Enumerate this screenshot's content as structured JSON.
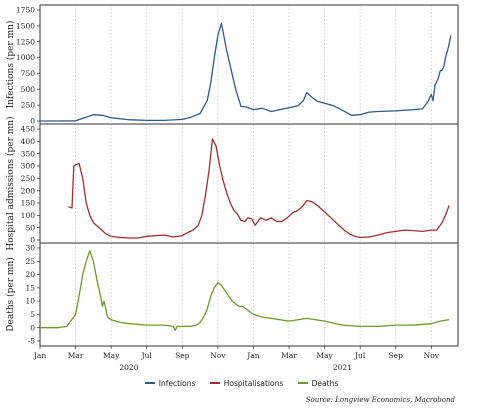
{
  "chart_data": [
    {
      "type": "line",
      "ylabel": "Infections (per mn)",
      "ylim": [
        0,
        1750
      ],
      "yticks": [
        0,
        250,
        500,
        750,
        1000,
        1250,
        1500,
        1750
      ],
      "series": [
        {
          "name": "Infections",
          "color": "#2e5a8c",
          "x": [
            0.0,
            1.0,
            2.0,
            2.5,
            3.0,
            3.5,
            4.0,
            5.0,
            6.0,
            7.0,
            8.0,
            8.5,
            9.0,
            9.4,
            9.6,
            9.8,
            10.0,
            10.2,
            10.5,
            11.0,
            11.3,
            11.6,
            12.0,
            12.5,
            13.0,
            14.0,
            14.5,
            14.8,
            15.0,
            15.3,
            15.6,
            16.0,
            16.5,
            17.0,
            17.5,
            18.0,
            18.5,
            19.0,
            20.0,
            21.0,
            21.5,
            21.8,
            22.0,
            22.1,
            22.2,
            22.4,
            22.5,
            22.6,
            22.7,
            22.8,
            22.95,
            23.1
          ],
          "values": [
            0,
            0,
            3,
            50,
            100,
            90,
            50,
            20,
            10,
            10,
            25,
            60,
            120,
            320,
            600,
            1000,
            1350,
            1540,
            1100,
            500,
            230,
            220,
            180,
            200,
            150,
            210,
            240,
            320,
            450,
            370,
            310,
            280,
            240,
            170,
            90,
            100,
            140,
            150,
            160,
            180,
            190,
            300,
            420,
            320,
            560,
            680,
            790,
            800,
            860,
            1000,
            1150,
            1350
          ]
        }
      ]
    },
    {
      "type": "line",
      "ylabel": "Hospital admissions (per mn)",
      "ylim": [
        0,
        450
      ],
      "yticks": [
        0,
        50,
        100,
        150,
        200,
        250,
        300,
        350,
        400,
        450
      ],
      "series": [
        {
          "name": "Hospitalisations",
          "color": "#a03030",
          "x": [
            1.6,
            1.8,
            1.9,
            2.0,
            2.2,
            2.4,
            2.6,
            2.8,
            3.0,
            3.4,
            3.7,
            4.0,
            4.5,
            5.0,
            5.5,
            6.0,
            6.5,
            7.0,
            7.5,
            8.0,
            8.3,
            8.6,
            8.9,
            9.1,
            9.3,
            9.5,
            9.7,
            9.9,
            10.1,
            10.3,
            10.5,
            10.7,
            10.9,
            11.1,
            11.3,
            11.5,
            11.7,
            11.9,
            12.1,
            12.4,
            12.7,
            13.0,
            13.3,
            13.6,
            13.9,
            14.2,
            14.5,
            14.8,
            15.0,
            15.3,
            15.6,
            15.9,
            16.2,
            16.5,
            16.8,
            17.1,
            17.4,
            17.7,
            18.0,
            18.5,
            19.0,
            19.5,
            20.0,
            20.5,
            21.0,
            21.5,
            22.0,
            22.3,
            22.6,
            22.8,
            23.0
          ],
          "values": [
            135,
            130,
            300,
            305,
            310,
            250,
            150,
            100,
            70,
            45,
            25,
            15,
            10,
            8,
            8,
            15,
            18,
            20,
            12,
            18,
            30,
            40,
            60,
            100,
            180,
            280,
            410,
            380,
            300,
            240,
            190,
            150,
            120,
            105,
            80,
            75,
            90,
            85,
            60,
            90,
            80,
            90,
            75,
            75,
            90,
            110,
            120,
            140,
            160,
            155,
            140,
            120,
            100,
            80,
            60,
            40,
            25,
            15,
            10,
            12,
            20,
            30,
            35,
            40,
            38,
            35,
            40,
            40,
            70,
            100,
            140
          ]
        }
      ]
    },
    {
      "type": "line",
      "ylabel": "Deaths (per mn)",
      "ylim": [
        -5,
        30
      ],
      "yticks": [
        -5,
        0,
        5,
        10,
        15,
        20,
        25,
        30
      ],
      "series": [
        {
          "name": "Deaths",
          "color": "#6e9a2e",
          "x": [
            0.0,
            1.0,
            1.5,
            2.0,
            2.2,
            2.4,
            2.6,
            2.8,
            3.0,
            3.2,
            3.4,
            3.5,
            3.6,
            3.8,
            4.0,
            4.5,
            5.0,
            6.0,
            7.0,
            7.5,
            7.6,
            7.7,
            8.0,
            8.5,
            8.8,
            9.0,
            9.2,
            9.4,
            9.6,
            9.8,
            10.0,
            10.2,
            10.4,
            10.6,
            10.8,
            11.0,
            11.2,
            11.4,
            11.6,
            12.0,
            12.5,
            13.0,
            14.0,
            15.0,
            16.0,
            17.0,
            18.0,
            19.0,
            20.0,
            21.0,
            22.0,
            22.5,
            23.0
          ],
          "values": [
            0,
            0,
            0.5,
            5,
            12,
            20,
            25,
            29,
            25,
            18,
            12,
            8,
            10,
            4,
            3,
            2,
            1.5,
            1,
            1,
            0.5,
            -1,
            0.5,
            0.5,
            0.5,
            1,
            2,
            4,
            7,
            12,
            15,
            17,
            16,
            14,
            12,
            10,
            9,
            8,
            8,
            7,
            5,
            4,
            3.5,
            2.5,
            3.5,
            2.5,
            1,
            0.5,
            0.5,
            1,
            1,
            1.5,
            2.5,
            3
          ]
        }
      ]
    }
  ],
  "x_axis": {
    "months": [
      "Jan",
      "Mar",
      "May",
      "Jul",
      "Sep",
      "Nov",
      "Jan",
      "Mar",
      "May",
      "Jul",
      "Sep",
      "Nov"
    ],
    "years": [
      "2020",
      "2021"
    ]
  },
  "legend": [
    "Infections",
    "Hospitalisations",
    "Deaths"
  ],
  "source": "Source: Longview Economics, Macrobond"
}
